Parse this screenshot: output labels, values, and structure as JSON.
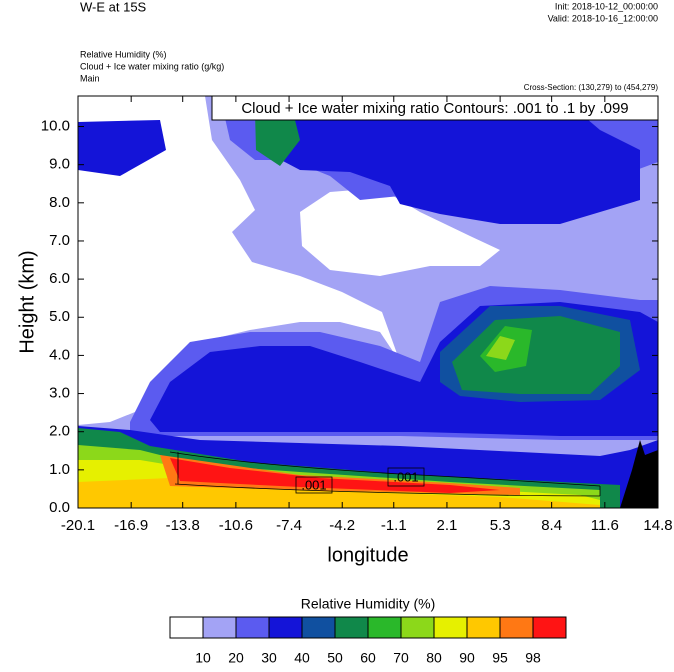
{
  "chart_data": {
    "type": "contour",
    "title": "W-E at 15S",
    "init": "Init: 2018-10-12_00:00:00",
    "valid": "Valid: 2018-10-16_12:00:00",
    "field_title": "Relative Humidity   (%)",
    "contour_title": "Cloud + Ice water mixing ratio   (g/kg)",
    "run": "Main",
    "cross_section": "Cross-Section: (130,279) to (454,279)",
    "contour_info": "Cloud + Ice water mixing ratio Contours: .001 to .1 by .099",
    "contour_labels": [
      ".001",
      ".001"
    ],
    "x_label": "longitude",
    "y_label": "Height (km)",
    "xlim": [
      -20.1,
      14.8
    ],
    "xticks": [
      -20.1,
      -16.9,
      -13.8,
      -10.6,
      -7.4,
      -4.2,
      -1.1,
      2.1,
      5.3,
      8.4,
      11.6,
      14.8
    ],
    "ylim": [
      0,
      10.8
    ],
    "yticks": [
      {
        "value": 0,
        "label": "0.0"
      },
      {
        "value": 1,
        "label": "1.0"
      },
      {
        "value": 2,
        "label": "2.0"
      },
      {
        "value": 3,
        "label": "3.0"
      },
      {
        "value": 4,
        "label": "4.0"
      },
      {
        "value": 5,
        "label": "5.0"
      },
      {
        "value": 6,
        "label": "6.0"
      },
      {
        "value": 7,
        "label": "7.0"
      },
      {
        "value": 8,
        "label": "8.0"
      },
      {
        "value": 9,
        "label": "9.0"
      },
      {
        "value": 10,
        "label": "10.0"
      }
    ],
    "colorbar_title": "Relative Humidity  (%)",
    "levels": [
      10,
      20,
      30,
      40,
      50,
      60,
      70,
      80,
      90,
      95,
      98
    ],
    "colors": [
      "#ffffff",
      "#a3a3f5",
      "#5b5bf0",
      "#1414d8",
      "#1050a0",
      "#10884a",
      "#2ab82a",
      "#8cd81a",
      "#e6f000",
      "#ffc800",
      "#ff7814",
      "#ff1414"
    ]
  }
}
